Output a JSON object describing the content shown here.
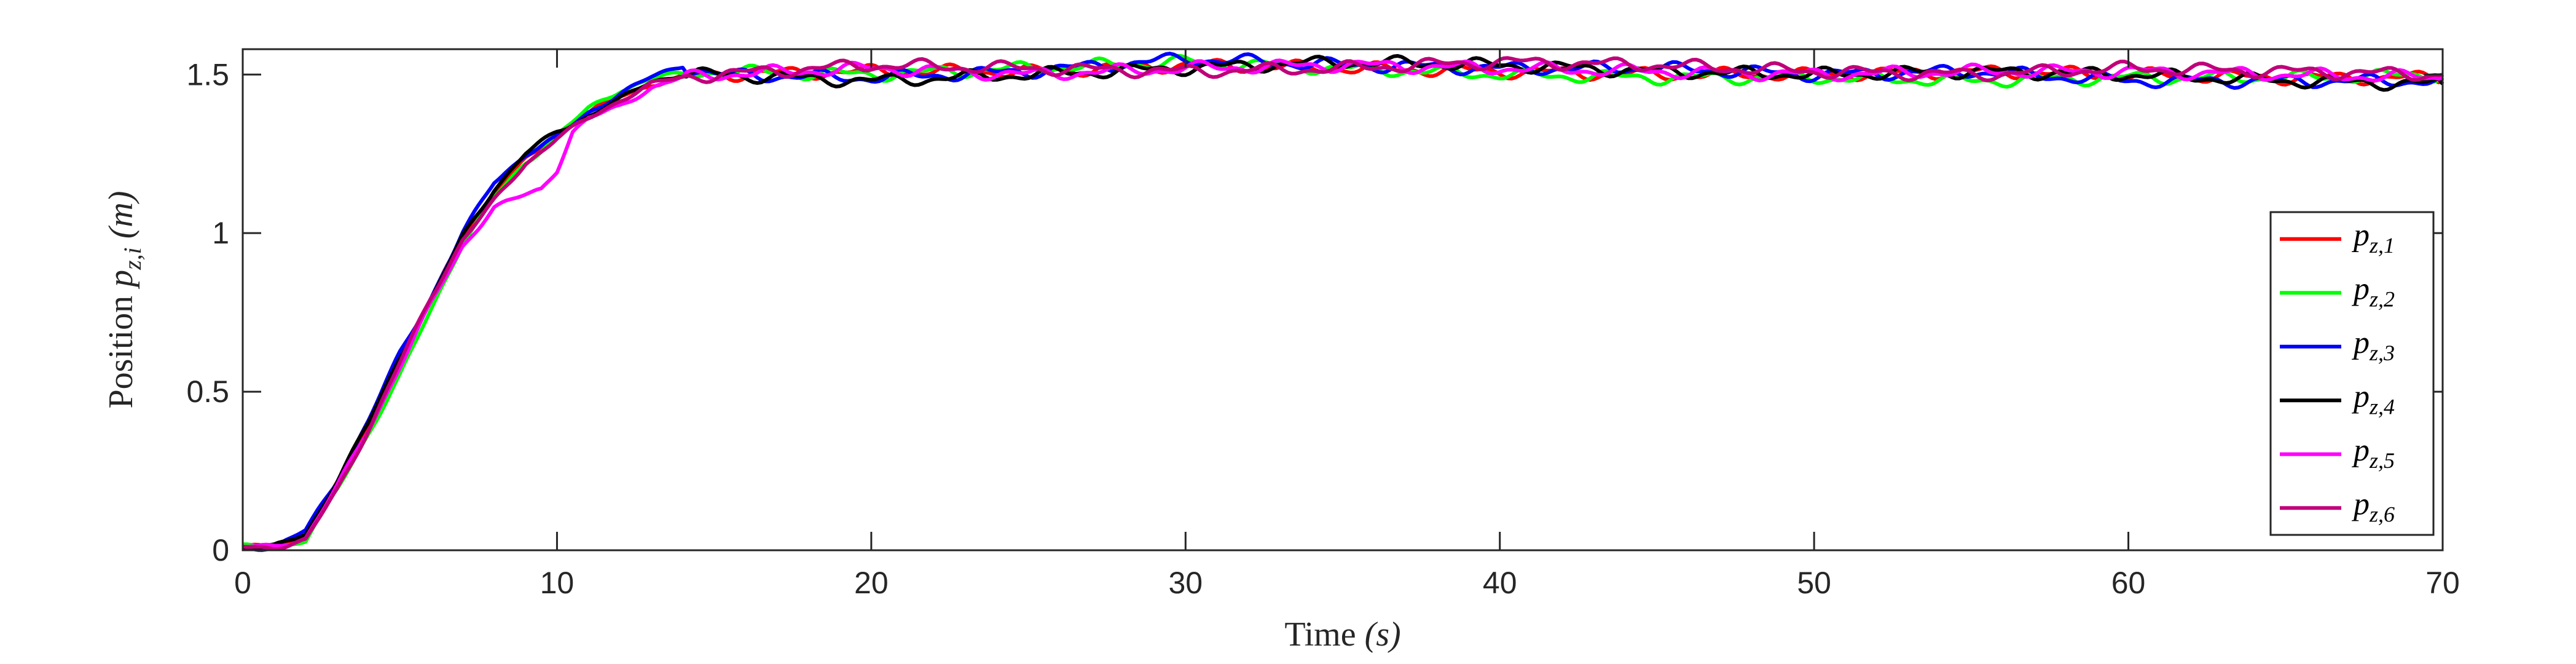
{
  "chart_data": {
    "type": "line",
    "title": "",
    "xlabel": "Time (s)",
    "xlabel_parts": {
      "main": "Time ",
      "var": "(s)"
    },
    "ylabel": "Position p_{z,i} (m)",
    "ylabel_parts": {
      "main": "Position ",
      "var": "p",
      "sub": "z,i",
      "unit": " (m)"
    },
    "xlim": [
      0,
      70
    ],
    "ylim": [
      0,
      1.58
    ],
    "xticks": [
      0,
      10,
      20,
      30,
      40,
      50,
      60,
      70
    ],
    "xtick_labels": [
      "0",
      "10",
      "20",
      "30",
      "40",
      "50",
      "60",
      "70"
    ],
    "yticks": [
      0,
      0.5,
      1,
      1.5
    ],
    "ytick_labels": [
      "0",
      "0.5",
      "1",
      "1.5"
    ],
    "grid": false,
    "legend_position": "right",
    "series": [
      {
        "name": "p_{z,1}",
        "label_main": "p",
        "label_sub": "z,1",
        "color": "#ff0000",
        "x": [
          0,
          1,
          2,
          3,
          4,
          5,
          6,
          7,
          8,
          9,
          10,
          11,
          12,
          13,
          14,
          15,
          20,
          25,
          30,
          35,
          40,
          45,
          50,
          55,
          60,
          65,
          70
        ],
        "y": [
          0.01,
          0.01,
          0.04,
          0.21,
          0.39,
          0.59,
          0.79,
          0.99,
          1.13,
          1.23,
          1.31,
          1.38,
          1.43,
          1.47,
          1.49,
          1.5,
          1.51,
          1.51,
          1.53,
          1.52,
          1.51,
          1.5,
          1.5,
          1.51,
          1.5,
          1.49,
          1.49
        ]
      },
      {
        "name": "p_{z,2}",
        "label_main": "p",
        "label_sub": "z,2",
        "color": "#00ff00",
        "x": [
          0,
          1,
          2,
          3,
          4,
          5,
          6,
          7,
          8,
          9,
          10,
          11,
          12,
          13,
          14,
          15,
          20,
          25,
          30,
          35,
          40,
          45,
          50,
          55,
          60,
          65,
          70
        ],
        "y": [
          0.01,
          0.01,
          0.03,
          0.19,
          0.37,
          0.55,
          0.76,
          0.97,
          1.11,
          1.22,
          1.31,
          1.39,
          1.45,
          1.49,
          1.5,
          1.51,
          1.5,
          1.52,
          1.54,
          1.52,
          1.5,
          1.49,
          1.49,
          1.48,
          1.49,
          1.49,
          1.5
        ]
      },
      {
        "name": "p_{z,3}",
        "label_main": "p",
        "label_sub": "z,3",
        "color": "#0000ff",
        "x": [
          0,
          1,
          2,
          3,
          4,
          5,
          6,
          7,
          8,
          9,
          10,
          11,
          12,
          13,
          14,
          15,
          20,
          25,
          30,
          35,
          40,
          45,
          50,
          55,
          60,
          65,
          70
        ],
        "y": [
          0.01,
          0.01,
          0.06,
          0.22,
          0.41,
          0.62,
          0.8,
          1.0,
          1.16,
          1.25,
          1.3,
          1.38,
          1.44,
          1.49,
          1.53,
          1.5,
          1.49,
          1.51,
          1.55,
          1.53,
          1.52,
          1.52,
          1.5,
          1.51,
          1.48,
          1.48,
          1.48
        ]
      },
      {
        "name": "p_{z,4}",
        "label_main": "p",
        "label_sub": "z,4",
        "color": "#000000",
        "x": [
          0,
          1,
          2,
          3,
          4,
          5,
          6,
          7,
          8,
          9,
          10,
          11,
          12,
          13,
          14,
          15,
          20,
          25,
          30,
          35,
          40,
          45,
          50,
          55,
          60,
          65,
          70
        ],
        "y": [
          0.01,
          0.01,
          0.05,
          0.22,
          0.4,
          0.61,
          0.79,
          0.99,
          1.14,
          1.25,
          1.32,
          1.37,
          1.42,
          1.48,
          1.5,
          1.5,
          1.48,
          1.5,
          1.52,
          1.54,
          1.53,
          1.51,
          1.5,
          1.51,
          1.5,
          1.48,
          1.47
        ]
      },
      {
        "name": "p_{z,5}",
        "label_main": "p",
        "label_sub": "z,5",
        "color": "#ff00ff",
        "x": [
          0,
          1,
          2,
          3,
          4,
          5,
          6,
          7,
          8,
          9,
          9.5,
          10,
          10.5,
          11,
          12,
          13,
          14,
          15,
          20,
          25,
          30,
          35,
          40,
          45,
          50,
          55,
          60,
          65,
          70
        ],
        "y": [
          0.01,
          0.01,
          0.04,
          0.2,
          0.38,
          0.58,
          0.78,
          0.96,
          1.08,
          1.12,
          1.14,
          1.2,
          1.32,
          1.36,
          1.4,
          1.46,
          1.49,
          1.5,
          1.52,
          1.5,
          1.52,
          1.53,
          1.52,
          1.51,
          1.5,
          1.51,
          1.51,
          1.5,
          1.49
        ]
      },
      {
        "name": "p_{z,6}",
        "label_main": "p",
        "label_sub": "z,6",
        "color": "#c0007a",
        "x": [
          0,
          1,
          2,
          3,
          4,
          5,
          6,
          7,
          8,
          9,
          10,
          11,
          12,
          13,
          14,
          15,
          20,
          25,
          30,
          35,
          40,
          45,
          50,
          55,
          60,
          65,
          70
        ],
        "y": [
          0.01,
          0.01,
          0.03,
          0.19,
          0.38,
          0.59,
          0.8,
          0.98,
          1.1,
          1.22,
          1.3,
          1.36,
          1.42,
          1.47,
          1.49,
          1.5,
          1.53,
          1.52,
          1.51,
          1.52,
          1.54,
          1.53,
          1.51,
          1.5,
          1.52,
          1.51,
          1.5
        ]
      }
    ]
  }
}
